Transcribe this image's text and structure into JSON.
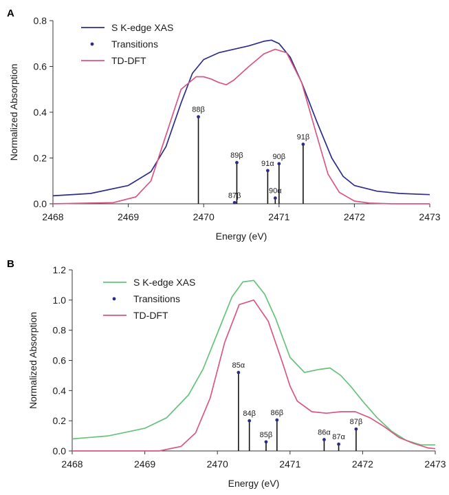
{
  "chart_data": [
    {
      "type": "line",
      "panel_label": "A",
      "xlabel": "Energy (eV)",
      "ylabel": "Normalized Absorption",
      "xlim": [
        2468,
        2473
      ],
      "ylim": [
        0,
        0.8
      ],
      "xticks": [
        "2468",
        "2469",
        "2470",
        "2471",
        "2472",
        "2473"
      ],
      "yticks": [
        "0.0",
        "0.2",
        "0.4",
        "0.6",
        "0.8"
      ],
      "legend_position": "top-left",
      "series": [
        {
          "name": "S K-edge XAS",
          "color": "#2b2c8a",
          "x": [
            2468.0,
            2468.5,
            2469.0,
            2469.3,
            2469.5,
            2469.7,
            2469.85,
            2470.0,
            2470.2,
            2470.4,
            2470.6,
            2470.8,
            2470.9,
            2471.0,
            2471.15,
            2471.3,
            2471.5,
            2471.7,
            2471.85,
            2472.0,
            2472.3,
            2472.6,
            2473.0
          ],
          "y": [
            0.035,
            0.045,
            0.08,
            0.14,
            0.25,
            0.44,
            0.57,
            0.63,
            0.66,
            0.675,
            0.69,
            0.71,
            0.715,
            0.7,
            0.64,
            0.53,
            0.36,
            0.2,
            0.12,
            0.08,
            0.055,
            0.045,
            0.04
          ]
        },
        {
          "name": "Transitions",
          "color": "#2b2c8a",
          "type": "stick",
          "x": [
            2469.93,
            2470.41,
            2470.44,
            2470.85,
            2470.95,
            2471.0,
            2471.32
          ],
          "y": [
            0.38,
            0.005,
            0.18,
            0.145,
            0.025,
            0.175,
            0.26
          ],
          "labels": [
            "88β",
            "87β",
            "89β",
            "91α",
            "90α",
            "90β",
            "91β"
          ]
        },
        {
          "name": "TD-DFT",
          "color": "#d9567f",
          "x": [
            2468.0,
            2468.8,
            2469.1,
            2469.3,
            2469.5,
            2469.7,
            2469.9,
            2470.0,
            2470.1,
            2470.2,
            2470.3,
            2470.4,
            2470.6,
            2470.8,
            2470.95,
            2471.1,
            2471.3,
            2471.5,
            2471.65,
            2471.8,
            2472.0,
            2472.2,
            2472.5,
            2473.0
          ],
          "y": [
            0.0,
            0.005,
            0.03,
            0.1,
            0.3,
            0.5,
            0.555,
            0.555,
            0.545,
            0.53,
            0.52,
            0.54,
            0.6,
            0.655,
            0.675,
            0.66,
            0.53,
            0.3,
            0.13,
            0.05,
            0.012,
            0.003,
            0.0,
            0.0
          ]
        }
      ]
    },
    {
      "type": "line",
      "panel_label": "B",
      "xlabel": "Energy (eV)",
      "ylabel": "Normalized Absorption",
      "xlim": [
        2468,
        2473
      ],
      "ylim": [
        0,
        1.2
      ],
      "xticks": [
        "2468",
        "2469",
        "2470",
        "2471",
        "2472",
        "2473"
      ],
      "yticks": [
        "0.0",
        "0.2",
        "0.4",
        "0.6",
        "0.8",
        "1.0",
        "1.2"
      ],
      "legend_position": "top-left",
      "series": [
        {
          "name": "S K-edge XAS",
          "color": "#66c27a",
          "x": [
            2468.0,
            2468.5,
            2469.0,
            2469.3,
            2469.6,
            2469.8,
            2470.0,
            2470.2,
            2470.35,
            2470.5,
            2470.65,
            2470.8,
            2471.0,
            2471.2,
            2471.4,
            2471.55,
            2471.7,
            2471.85,
            2472.0,
            2472.2,
            2472.4,
            2472.6,
            2472.8,
            2473.0
          ],
          "y": [
            0.08,
            0.1,
            0.15,
            0.22,
            0.37,
            0.54,
            0.78,
            1.02,
            1.12,
            1.13,
            1.04,
            0.88,
            0.62,
            0.52,
            0.54,
            0.55,
            0.5,
            0.42,
            0.33,
            0.22,
            0.13,
            0.07,
            0.04,
            0.04
          ]
        },
        {
          "name": "Transitions",
          "color": "#2b2c8a",
          "type": "stick",
          "x": [
            2470.29,
            2470.44,
            2470.67,
            2470.82,
            2471.47,
            2471.67,
            2471.91
          ],
          "y": [
            0.52,
            0.2,
            0.06,
            0.205,
            0.075,
            0.045,
            0.145
          ],
          "labels": [
            "85α",
            "84β",
            "85β",
            "86β",
            "86α",
            "87α",
            "87β"
          ]
        },
        {
          "name": "TD-DFT",
          "color": "#d9567f",
          "x": [
            2468.0,
            2469.2,
            2469.5,
            2469.7,
            2469.9,
            2470.1,
            2470.3,
            2470.5,
            2470.7,
            2470.9,
            2471.0,
            2471.1,
            2471.3,
            2471.5,
            2471.7,
            2471.9,
            2472.1,
            2472.3,
            2472.5,
            2472.7,
            2472.9,
            2473.0
          ],
          "y": [
            0.0,
            0.0,
            0.03,
            0.12,
            0.35,
            0.72,
            0.97,
            1.0,
            0.86,
            0.58,
            0.43,
            0.33,
            0.26,
            0.25,
            0.26,
            0.26,
            0.22,
            0.16,
            0.09,
            0.05,
            0.02,
            0.015
          ]
        }
      ]
    }
  ]
}
